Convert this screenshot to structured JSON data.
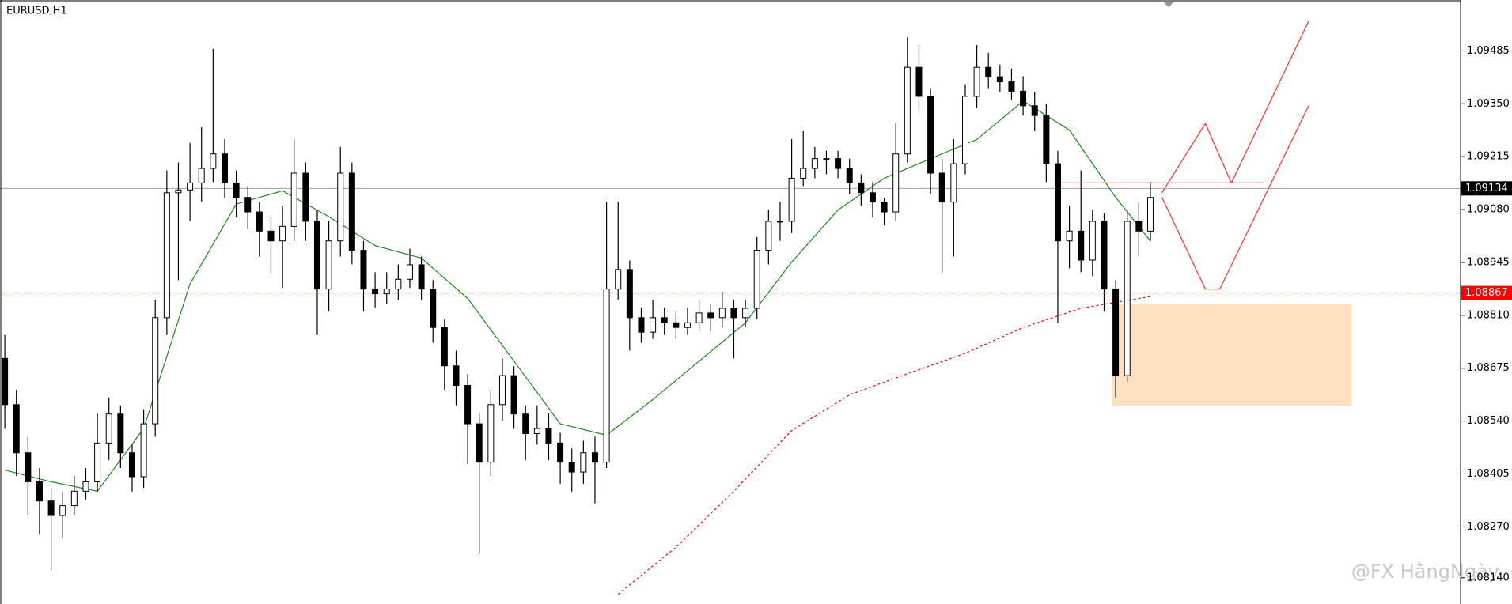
{
  "chart_data": {
    "type": "candlestick",
    "title": "EURUSD,H1",
    "open": [
      1.087,
      1.08582,
      1.08459,
      1.08385,
      1.08336,
      1.08299,
      1.08324,
      1.08361,
      1.08385,
      1.08484,
      1.08558,
      1.08459,
      1.08398,
      1.08533,
      1.08804,
      1.09123,
      1.0913,
      1.09148,
      1.09185,
      1.09222,
      1.09148,
      1.09111,
      1.09074,
      1.09025,
      1.09,
      1.09037,
      1.09173,
      1.0905,
      1.08877,
      1.09,
      1.09173,
      1.08976,
      1.08877,
      1.08865,
      1.08877,
      1.08902,
      1.08939,
      1.08877,
      1.08779,
      1.08681,
      1.08631,
      1.08533,
      1.08435,
      1.08582,
      1.08656,
      1.08558,
      1.08508,
      1.08521,
      1.08484,
      1.08435,
      1.0841,
      1.08459,
      1.08435,
      1.08877,
      1.08927,
      1.08804,
      1.08767,
      1.08804,
      1.08791,
      1.08779,
      1.08791,
      1.08816,
      1.08804,
      1.08828,
      1.08804,
      1.08828,
      1.08976,
      1.0905,
      1.0905,
      1.0916,
      1.09185,
      1.0921,
      1.0921,
      1.09185,
      1.09148,
      1.09123,
      1.09099,
      1.09074,
      1.09222,
      1.09443,
      1.09369,
      1.09173,
      1.09099,
      1.09197,
      1.09369,
      1.09443,
      1.09419,
      1.09406,
      1.09382,
      1.09345,
      1.0932,
      1.09197,
      1.09,
      1.09025,
      1.08951,
      1.0905,
      1.08877,
      1.08656,
      1.0905,
      1.09025
    ],
    "high": [
      1.0876,
      1.0862,
      1.085,
      1.0842,
      1.0837,
      1.0836,
      1.084,
      1.0842,
      1.0856,
      1.086,
      1.0858,
      1.0848,
      1.0857,
      1.0885,
      1.0918,
      1.092,
      1.0925,
      1.0929,
      1.0949,
      1.0926,
      1.0918,
      1.0914,
      1.091,
      1.0906,
      1.0909,
      1.0926,
      1.092,
      1.0908,
      1.0905,
      1.0924,
      1.092,
      1.09,
      1.0892,
      1.0892,
      1.0894,
      1.0898,
      1.0896,
      1.089,
      1.088,
      1.0872,
      1.0866,
      1.0856,
      1.0862,
      1.087,
      1.0868,
      1.0858,
      1.0858,
      1.0856,
      1.0851,
      1.0847,
      1.0849,
      1.085,
      1.091,
      1.091,
      1.0895,
      1.0883,
      1.0885,
      1.0883,
      1.0882,
      1.0883,
      1.0885,
      1.0884,
      1.0887,
      1.0885,
      1.0885,
      1.0901,
      1.0908,
      1.091,
      1.0926,
      1.0928,
      1.0924,
      1.0923,
      1.0923,
      1.0921,
      1.0917,
      1.0915,
      1.0911,
      1.093,
      1.0952,
      1.095,
      1.0939,
      1.0921,
      1.0926,
      1.094,
      1.095,
      1.0948,
      1.0945,
      1.0944,
      1.0942,
      1.0938,
      1.0935,
      1.0923,
      1.0909,
      1.0918,
      1.0908,
      1.0907,
      1.089,
      1.0908,
      1.091,
      1.0915
    ],
    "low": [
      1.0852,
      1.084,
      1.083,
      1.0825,
      1.0816,
      1.0824,
      1.083,
      1.0834,
      1.0836,
      1.0844,
      1.0842,
      1.0836,
      1.0837,
      1.085,
      1.0876,
      1.089,
      1.0905,
      1.091,
      1.0915,
      1.0911,
      1.0906,
      1.0903,
      1.0896,
      1.0892,
      1.0888,
      1.09,
      1.09,
      1.0876,
      1.0882,
      1.0896,
      1.0894,
      1.0882,
      1.0883,
      1.0884,
      1.0885,
      1.0888,
      1.0885,
      1.0874,
      1.0862,
      1.0858,
      1.0843,
      1.082,
      1.084,
      1.0854,
      1.0852,
      1.0844,
      1.0848,
      1.0844,
      1.0838,
      1.0836,
      1.0838,
      1.0833,
      1.0842,
      1.0885,
      1.0872,
      1.0874,
      1.0875,
      1.0876,
      1.0875,
      1.0876,
      1.0877,
      1.0877,
      1.0878,
      1.087,
      1.0878,
      1.088,
      1.0894,
      1.09,
      1.0902,
      1.0914,
      1.0916,
      1.0917,
      1.0916,
      1.0912,
      1.0909,
      1.0906,
      1.0904,
      1.0905,
      1.092,
      1.0933,
      1.0912,
      1.0892,
      1.0896,
      1.0917,
      1.0934,
      1.0939,
      1.0938,
      1.0936,
      1.0932,
      1.0928,
      1.0915,
      1.0879,
      1.0893,
      1.0892,
      1.0891,
      1.0882,
      1.086,
      1.0864,
      1.0896,
      1.09
    ],
    "close": [
      1.08582,
      1.08459,
      1.08385,
      1.08336,
      1.08299,
      1.08324,
      1.08361,
      1.08385,
      1.08484,
      1.08558,
      1.08459,
      1.08398,
      1.08533,
      1.08804,
      1.09123,
      1.0913,
      1.09148,
      1.09185,
      1.09222,
      1.09148,
      1.09111,
      1.09074,
      1.09025,
      1.09,
      1.09037,
      1.09173,
      1.0905,
      1.08877,
      1.09,
      1.09173,
      1.08976,
      1.08877,
      1.08865,
      1.08877,
      1.08902,
      1.08939,
      1.08877,
      1.08779,
      1.08681,
      1.08631,
      1.08533,
      1.08435,
      1.08582,
      1.08656,
      1.08558,
      1.08508,
      1.08521,
      1.08484,
      1.08435,
      1.0841,
      1.08459,
      1.08435,
      1.08877,
      1.08927,
      1.08804,
      1.08767,
      1.08804,
      1.08791,
      1.08779,
      1.08791,
      1.08816,
      1.08804,
      1.08828,
      1.08804,
      1.08828,
      1.08976,
      1.0905,
      1.0905,
      1.0916,
      1.09185,
      1.0921,
      1.0921,
      1.09185,
      1.09148,
      1.09123,
      1.09099,
      1.09074,
      1.09222,
      1.09443,
      1.09369,
      1.09173,
      1.09099,
      1.09197,
      1.09369,
      1.09443,
      1.09419,
      1.09406,
      1.09382,
      1.09345,
      1.0932,
      1.09197,
      1.09,
      1.09025,
      1.08951,
      1.0905,
      1.08877,
      1.08656,
      1.0905,
      1.09025,
      1.09111
    ],
    "ylim": [
      1.08073,
      1.09615
    ],
    "yticks": [
      1.09485,
      {
        "value": 1.0935,
        "label": "1.09350"
      },
      1.09215,
      {
        "value": 1.0908,
        "label": "1.09080"
      },
      1.08945,
      {
        "value": 1.0881,
        "label": "1.08810"
      },
      1.08675,
      {
        "value": 1.0854,
        "label": "1.08540"
      },
      1.08405,
      {
        "value": 1.0827,
        "label": "1.08270"
      },
      {
        "value": 1.0814,
        "label": "1.08140"
      }
    ],
    "lines": [
      {
        "color": "#1e8a1e",
        "dashed": false,
        "x": [
          0,
          4,
          8,
          12,
          16,
          20,
          24,
          28,
          32,
          36,
          40,
          44,
          48,
          52,
          56,
          60,
          64,
          68,
          72,
          76,
          80,
          84,
          88,
          92,
          96,
          99
        ],
        "values": [
          1.08415,
          1.08385,
          1.08361,
          1.08521,
          1.0889,
          1.09094,
          1.09128,
          1.09062,
          1.08988,
          1.08956,
          1.08853,
          1.08693,
          1.08533,
          1.08504,
          1.08595,
          1.08693,
          1.08791,
          1.08946,
          1.09079,
          1.0916,
          1.0921,
          1.09259,
          1.09357,
          1.09283,
          1.09111,
          1.09
        ]
      },
      {
        "color": "#ff0000",
        "dashed": true,
        "x": [
          53,
          58,
          63,
          68,
          73,
          78,
          83,
          88,
          93,
          98,
          99
        ],
        "values": [
          1.08098,
          1.08218,
          1.08361,
          1.08516,
          1.08607,
          1.08661,
          1.08713,
          1.08779,
          1.08828,
          1.08853,
          1.08858
        ]
      }
    ],
    "price_lines": [
      {
        "value": 1.09134,
        "color": "#a0a0a0",
        "label_bg": "#000000",
        "dashed": false
      },
      {
        "value": 1.08867,
        "color": "#ff0000",
        "label_bg": "#ff0000",
        "dashed": true
      }
    ],
    "zone": {
      "x": [
        95.7,
        116.4
      ],
      "values": [
        1.08579,
        1.0884
      ],
      "color": "#fde0bf"
    },
    "drawings": [
      {
        "color": "#ff3b3b",
        "x": [
          100,
          103.75,
          106,
          112.67
        ],
        "values": [
          1.09123,
          1.093,
          1.09148,
          1.09561
        ]
      },
      {
        "color": "#ff3b3b",
        "x": [
          100,
          103.75,
          105,
          112.67
        ],
        "values": [
          1.09111,
          1.08877,
          1.08877,
          1.09345
        ]
      },
      {
        "color": "#ff3b3b",
        "x": [
          91.25,
          108.75
        ],
        "values": [
          1.09148,
          1.09148
        ]
      }
    ],
    "watermark": "@FX HằngNgày"
  }
}
